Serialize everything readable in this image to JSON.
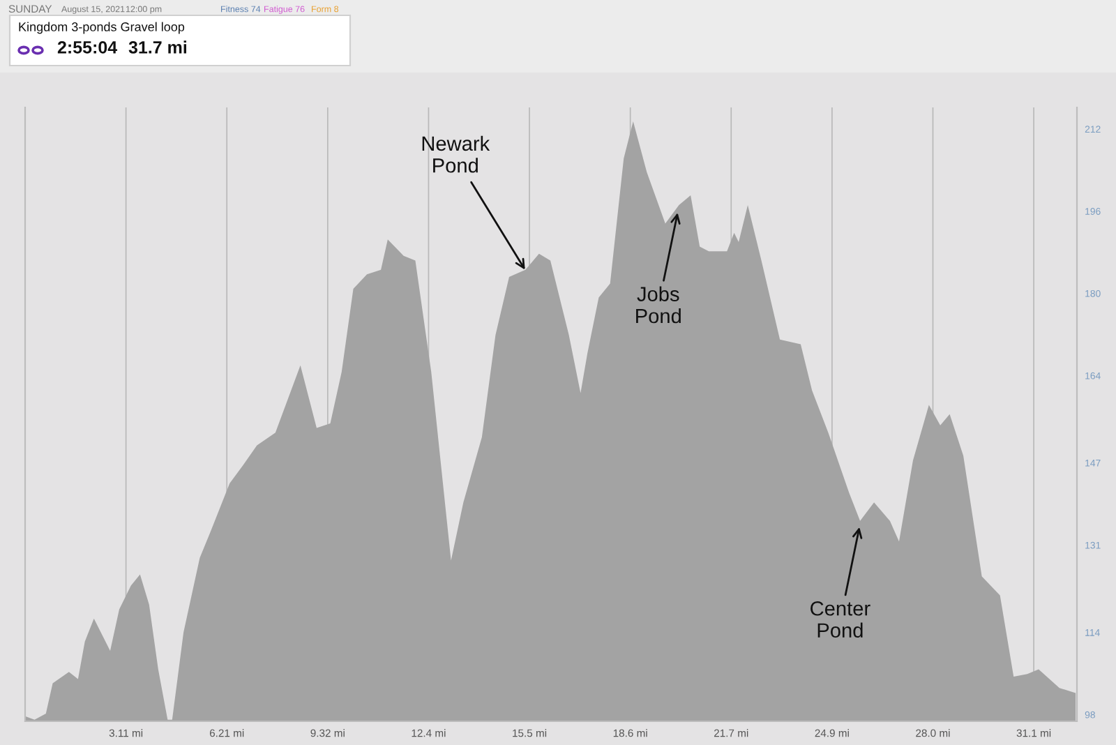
{
  "chart_data": {
    "type": "area",
    "title": "Kingdom 3-ponds Gravel loop",
    "annotations": [
      "SUNDAY",
      "August 15, 2021",
      "12:00 pm",
      "Fitness 74",
      "Fatigue 76",
      "Form 8",
      "2:55:04",
      "31.7 mi",
      {
        "text": "Newark\nPond",
        "x": 15.4,
        "y": 184.6
      },
      {
        "text": "Jobs\nPond",
        "x": 20.1,
        "y": 195.7
      },
      {
        "text": "Center\nPond",
        "x": 25.7,
        "y": 134.5
      }
    ],
    "x": [
      0.0,
      0.29,
      0.64,
      0.85,
      1.35,
      1.63,
      1.84,
      2.12,
      2.62,
      2.9,
      3.26,
      3.54,
      3.82,
      4.1,
      4.39,
      4.53,
      4.88,
      5.38,
      5.73,
      6.3,
      6.72,
      7.14,
      7.71,
      8.48,
      8.98,
      9.4,
      9.75,
      10.11,
      10.53,
      10.96,
      11.17,
      11.66,
      12.02,
      12.51,
      12.87,
      13.12,
      13.5,
      14.07,
      14.49,
      14.91,
      15.41,
      15.83,
      16.18,
      16.75,
      17.11,
      17.32,
      17.67,
      18.02,
      18.44,
      18.73,
      19.15,
      19.72,
      20.14,
      20.5,
      20.78,
      21.06,
      21.62,
      21.84,
      21.98,
      22.26,
      22.68,
      23.25,
      23.89,
      24.24,
      24.74,
      25.38,
      25.72,
      26.15,
      26.64,
      26.92,
      27.35,
      27.84,
      28.19,
      28.48,
      28.9,
      29.47,
      30.03,
      30.45,
      30.87,
      31.22,
      31.86,
      32.36
    ],
    "series": [
      {
        "color": "#a3a3a3",
        "values": [
          97.7,
          97.0,
          98.2,
          104.1,
          106.3,
          104.9,
          112.2,
          116.7,
          110.4,
          118.5,
          123.1,
          125.3,
          119.4,
          106.8,
          97.0,
          97.0,
          114.0,
          128.5,
          133.9,
          143.0,
          146.6,
          150.4,
          152.9,
          166.0,
          153.8,
          154.7,
          164.7,
          180.9,
          183.7,
          184.6,
          190.5,
          187.3,
          186.4,
          164.7,
          143.0,
          128.0,
          139.3,
          152.0,
          171.9,
          183.2,
          184.6,
          187.7,
          186.4,
          171.9,
          160.6,
          168.3,
          179.2,
          181.9,
          206.3,
          213.5,
          203.6,
          193.6,
          197.2,
          199.1,
          189.1,
          188.2,
          188.2,
          191.8,
          190.0,
          197.2,
          186.4,
          171.0,
          170.1,
          161.1,
          152.9,
          141.2,
          135.7,
          139.3,
          135.7,
          131.7,
          147.5,
          158.3,
          154.3,
          156.5,
          148.4,
          124.9,
          121.2,
          105.4,
          105.9,
          106.8,
          103.2,
          102.2
        ]
      }
    ],
    "xlim": [
      0,
      32.4
    ],
    "xticks": [
      {
        "value": 3.107,
        "label": "3.11 mi"
      },
      {
        "value": 6.214,
        "label": "6.21 mi"
      },
      {
        "value": 9.321,
        "label": "9.32 mi"
      },
      {
        "value": 12.428,
        "label": "12.4 mi"
      },
      {
        "value": 15.535,
        "label": "15.5 mi"
      },
      {
        "value": 18.642,
        "label": "18.6 mi"
      },
      {
        "value": 21.749,
        "label": "21.7 mi"
      },
      {
        "value": 24.856,
        "label": "24.9 mi"
      },
      {
        "value": 27.963,
        "label": "28.0 mi"
      },
      {
        "value": 31.07,
        "label": "31.1 mi"
      }
    ],
    "ylim": [
      96.7,
      216.2
    ],
    "yticks": [
      98,
      114,
      131,
      147,
      164,
      180,
      196,
      212
    ],
    "grid": "x"
  }
}
